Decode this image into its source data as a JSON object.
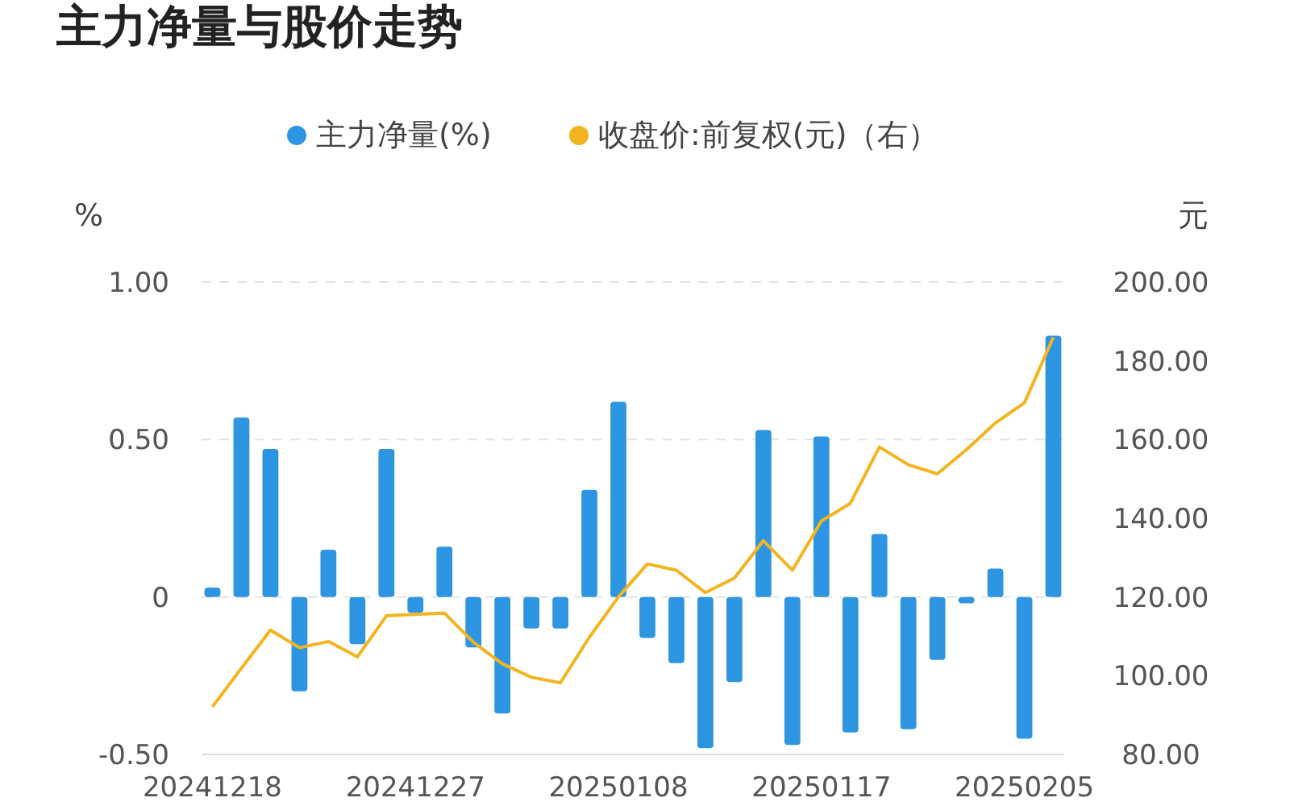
{
  "chart_data": {
    "type": "bar",
    "title": "主力净量与股价走势",
    "ylabel": "%",
    "y2label": "元",
    "categories": [
      "20241218",
      null,
      null,
      null,
      null,
      null,
      null,
      "20241227",
      null,
      null,
      null,
      null,
      null,
      null,
      "20250108",
      null,
      null,
      null,
      null,
      null,
      null,
      "20250117",
      null,
      null,
      null,
      null,
      null,
      null,
      "20250205",
      null
    ],
    "series": [
      {
        "name": "主力净量(%)",
        "color": "#2e95e3",
        "values": [
          0.03,
          0.57,
          0.47,
          -0.3,
          0.15,
          -0.15,
          0.47,
          -0.05,
          0.16,
          -0.16,
          -0.37,
          -0.1,
          -0.1,
          0.34,
          0.62,
          -0.13,
          -0.21,
          -0.48,
          -0.27,
          0.53,
          -0.47,
          0.51,
          -0.43,
          0.2,
          -0.42,
          -0.2,
          -0.02,
          0.09,
          -0.45,
          0.83
        ]
      },
      {
        "name": "收盘价:前复权(元)（右）",
        "type": "line",
        "axis": "y2",
        "color": "#f2b51e",
        "values": [
          92.1,
          101.9,
          111.6,
          107.1,
          108.7,
          104.8,
          115.2,
          115.6,
          115.9,
          108.5,
          103,
          99.6,
          98.2,
          109.8,
          120,
          128.4,
          126.8,
          121.1,
          124.8,
          134.3,
          126.8,
          139.3,
          143.8,
          158.1,
          153.6,
          151.3,
          157.4,
          164.2,
          169.3,
          186
        ]
      }
    ],
    "ylim": [
      -0.5,
      1
    ],
    "yticks": [
      {
        "value": -0.5,
        "label": "-0.50"
      },
      0,
      {
        "value": 0.5,
        "label": "0.50"
      },
      {
        "value": 1,
        "label": "1.00"
      }
    ],
    "y2lim": [
      80,
      200
    ],
    "y2ticks": [
      {
        "value": 80,
        "label": "80.00"
      },
      {
        "value": 100,
        "label": "100.00"
      },
      {
        "value": 120,
        "label": "120.00"
      },
      {
        "value": 140,
        "label": "140.00"
      },
      {
        "value": 160,
        "label": "160.00"
      },
      {
        "value": 180,
        "label": "180.00"
      },
      {
        "value": 200,
        "label": "200.00"
      }
    ],
    "grid": "y",
    "legend": "top",
    "marker": "none"
  }
}
